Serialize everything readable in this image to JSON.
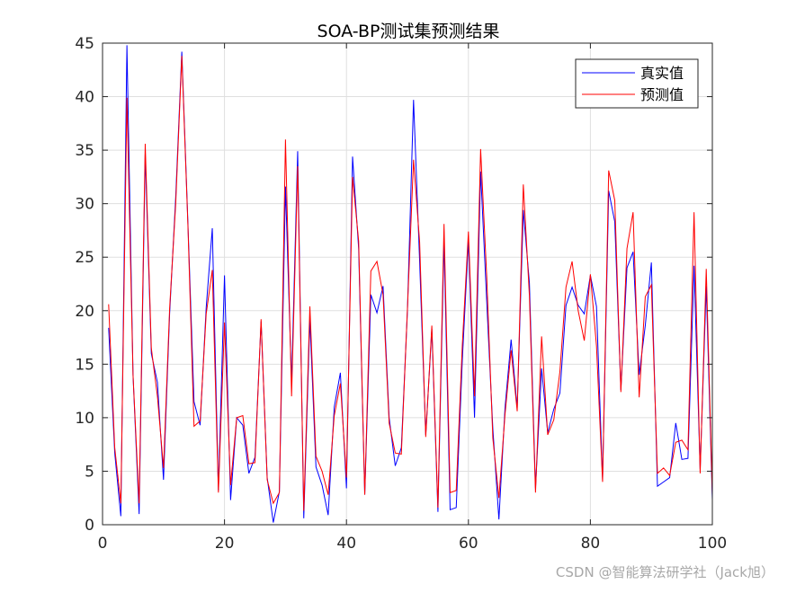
{
  "watermark": "CSDN @智能算法研学社（Jack旭）",
  "chart_data": {
    "type": "line",
    "title": "SOA-BP测试集预测结果",
    "xlabel": "",
    "ylabel": "",
    "xlim": [
      0,
      100
    ],
    "ylim": [
      0,
      45
    ],
    "xticks": [
      0,
      20,
      40,
      60,
      80,
      100
    ],
    "yticks": [
      0,
      5,
      10,
      15,
      20,
      25,
      30,
      35,
      40,
      45
    ],
    "grid": true,
    "legend_position": "top-right",
    "x": [
      1,
      2,
      3,
      4,
      5,
      6,
      7,
      8,
      9,
      10,
      11,
      12,
      13,
      14,
      15,
      16,
      17,
      18,
      19,
      20,
      21,
      22,
      23,
      24,
      25,
      26,
      27,
      28,
      29,
      30,
      31,
      32,
      33,
      34,
      35,
      36,
      37,
      38,
      39,
      40,
      41,
      42,
      43,
      44,
      45,
      46,
      47,
      48,
      49,
      50,
      51,
      52,
      53,
      54,
      55,
      56,
      57,
      58,
      59,
      60,
      61,
      62,
      63,
      64,
      65,
      66,
      67,
      68,
      69,
      70,
      71,
      72,
      73,
      74,
      75,
      76,
      77,
      78,
      79,
      80,
      81,
      82,
      83,
      84,
      85,
      86,
      87,
      88,
      89,
      90,
      91,
      92,
      93,
      94,
      95,
      96,
      97,
      98,
      99,
      100
    ],
    "series": [
      {
        "name": "真实值",
        "color": "#0000ff",
        "values": [
          18.4,
          6.7,
          0.8,
          44.8,
          14.0,
          1.0,
          34.6,
          16.0,
          13.3,
          4.2,
          19.7,
          30.6,
          44.2,
          28.2,
          11.5,
          9.3,
          20.3,
          27.7,
          3.2,
          23.3,
          2.3,
          10.0,
          9.3,
          4.8,
          6.3,
          19.0,
          4.4,
          0.2,
          3.1,
          31.6,
          13.3,
          34.9,
          0.6,
          19.2,
          5.4,
          3.7,
          0.9,
          11.0,
          14.2,
          3.4,
          34.4,
          25.8,
          2.8,
          21.5,
          19.8,
          22.3,
          10.0,
          5.5,
          7.2,
          20.0,
          39.7,
          24.6,
          8.4,
          18.3,
          1.2,
          26.5,
          1.4,
          1.6,
          15.4,
          26.6,
          10.0,
          33.0,
          20.9,
          9.0,
          0.5,
          10.9,
          17.3,
          10.9,
          29.4,
          22.6,
          3.4,
          14.6,
          8.6,
          10.8,
          12.3,
          20.5,
          22.2,
          20.5,
          19.7,
          23.3,
          20.4,
          4.2,
          31.2,
          28.3,
          12.6,
          24.0,
          25.5,
          14.0,
          18.6,
          24.5,
          3.6,
          4.0,
          4.4,
          9.5,
          6.1,
          6.2,
          24.2,
          5.2,
          22.3,
          2.3
        ]
      },
      {
        "name": "预测值",
        "color": "#ff0000",
        "values": [
          20.6,
          7.2,
          2.0,
          39.9,
          14.0,
          2.0,
          35.6,
          16.5,
          12.0,
          5.3,
          20.2,
          30.0,
          43.8,
          28.0,
          9.2,
          9.7,
          19.7,
          23.8,
          3.0,
          18.9,
          3.7,
          10.0,
          10.2,
          5.7,
          5.8,
          19.2,
          4.2,
          2.0,
          3.0,
          36.0,
          12.0,
          33.5,
          1.3,
          20.4,
          6.4,
          5.0,
          2.8,
          10.2,
          13.2,
          4.4,
          32.5,
          26.5,
          2.8,
          23.7,
          24.6,
          21.5,
          9.5,
          6.7,
          6.6,
          20.2,
          34.1,
          26.4,
          8.2,
          18.6,
          1.6,
          28.1,
          3.0,
          3.2,
          16.8,
          27.4,
          12.0,
          35.1,
          23.2,
          8.1,
          2.5,
          10.3,
          16.3,
          10.6,
          31.8,
          21.4,
          3.0,
          17.6,
          8.4,
          9.8,
          14.3,
          22.2,
          24.6,
          20.0,
          17.2,
          23.4,
          16.7,
          4.0,
          33.1,
          30.3,
          12.4,
          25.8,
          29.2,
          11.9,
          21.3,
          22.4,
          4.8,
          5.3,
          4.6,
          7.7,
          7.9,
          7.0,
          29.2,
          4.8,
          23.9,
          2.8
        ]
      }
    ]
  }
}
